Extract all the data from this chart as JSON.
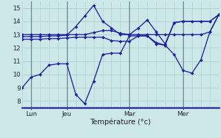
{
  "xlabel": "Température (°c)",
  "bg_color": "#cce8e8",
  "line_color": "#2020a0",
  "grid_color": "#aacece",
  "vline_color": "#6080a0",
  "xlim": [
    0,
    22
  ],
  "ylim": [
    7.5,
    15.5
  ],
  "yticks": [
    8,
    9,
    10,
    11,
    12,
    13,
    14,
    15
  ],
  "xtick_labels": [
    "Lun",
    "Jeu",
    "Mar",
    "Mer"
  ],
  "xtick_positions": [
    1,
    5,
    12,
    18
  ],
  "vline_positions": [
    1,
    5,
    12,
    18
  ],
  "series": [
    {
      "x": [
        0,
        1,
        2,
        3,
        4,
        5,
        6,
        7,
        8,
        9,
        10,
        11,
        12,
        13,
        14,
        15,
        16,
        17,
        18,
        19,
        20,
        21,
        22
      ],
      "y": [
        9.0,
        9.8,
        10.0,
        10.7,
        10.8,
        10.8,
        8.5,
        7.8,
        9.5,
        11.5,
        11.6,
        11.6,
        12.9,
        12.9,
        12.9,
        12.4,
        12.2,
        11.5,
        10.3,
        10.1,
        11.1,
        13.2,
        14.5
      ]
    },
    {
      "x": [
        0,
        1,
        2,
        3,
        4,
        5,
        6,
        7,
        8,
        9,
        10,
        11,
        12,
        13,
        14,
        15,
        16,
        17,
        18,
        19,
        20,
        21,
        22
      ],
      "y": [
        13.0,
        13.0,
        13.0,
        13.0,
        13.0,
        13.0,
        13.0,
        13.0,
        13.15,
        13.3,
        13.3,
        13.1,
        13.0,
        13.0,
        13.0,
        13.0,
        13.0,
        13.0,
        13.0,
        13.0,
        13.0,
        13.2,
        14.5
      ]
    },
    {
      "x": [
        0,
        1,
        2,
        3,
        4,
        5,
        6,
        7,
        8,
        9,
        10,
        11,
        12,
        13,
        14,
        15,
        16,
        17,
        18,
        19,
        20,
        21,
        22
      ],
      "y": [
        12.85,
        12.85,
        12.85,
        12.9,
        12.9,
        12.95,
        13.6,
        14.4,
        15.2,
        14.0,
        13.5,
        13.0,
        13.0,
        13.5,
        14.1,
        13.2,
        12.3,
        13.9,
        14.0,
        14.0,
        14.0,
        14.0,
        14.5
      ]
    },
    {
      "x": [
        0,
        1,
        2,
        3,
        4,
        5,
        6,
        7,
        8,
        9,
        10,
        11,
        12,
        13,
        14,
        15,
        16,
        17,
        18,
        19,
        20,
        21,
        22
      ],
      "y": [
        12.65,
        12.65,
        12.65,
        12.7,
        12.7,
        12.75,
        12.8,
        12.8,
        12.8,
        12.8,
        12.55,
        12.5,
        12.5,
        12.9,
        12.9,
        12.3,
        12.2,
        13.9,
        14.0,
        14.0,
        14.0,
        14.0,
        14.5
      ]
    }
  ]
}
